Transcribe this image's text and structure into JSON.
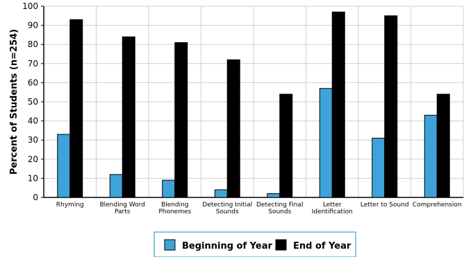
{
  "chart_data": {
    "type": "bar",
    "ylabel": "Percent of Students (n=254)",
    "xlabel": "",
    "ylim": [
      0,
      100
    ],
    "yticks": [
      0,
      10,
      20,
      30,
      40,
      50,
      60,
      70,
      80,
      90,
      100
    ],
    "grid": true,
    "legend_position": "bottom-center",
    "categories": [
      [
        "Rhyming"
      ],
      [
        "Blending Word",
        "Parts"
      ],
      [
        "Blending",
        "Phonemes"
      ],
      [
        "Detecting Initial",
        "Sounds"
      ],
      [
        "Detecting Final",
        "Sounds"
      ],
      [
        "Letter",
        "Identification"
      ],
      [
        "Letter to Sound"
      ],
      [
        "Comprehension"
      ]
    ],
    "series": [
      {
        "name": "Beginning of Year",
        "color": "#3ea3d8",
        "values": [
          33,
          12,
          9,
          4,
          2,
          57,
          31,
          43
        ]
      },
      {
        "name": "End of Year",
        "color": "#000000",
        "values": [
          93,
          84,
          81,
          72,
          54,
          97,
          95,
          54
        ]
      }
    ]
  }
}
